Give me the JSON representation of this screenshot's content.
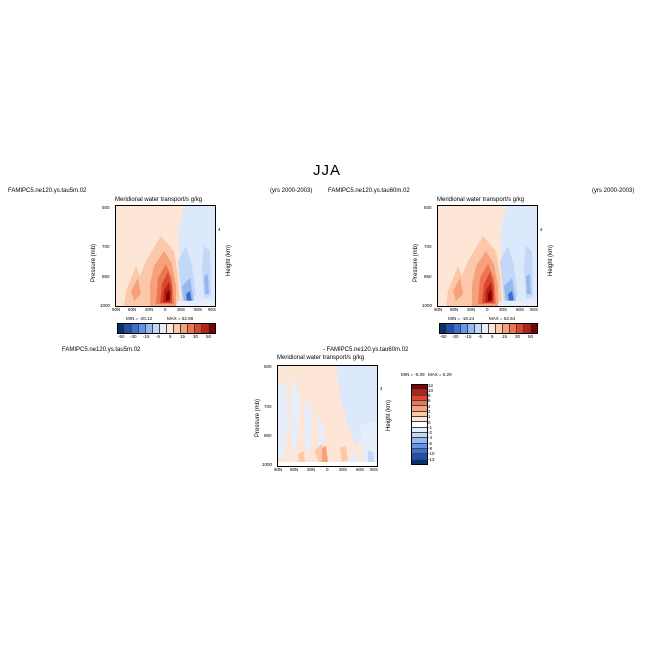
{
  "figure": {
    "main_title": "JJA"
  },
  "panel_left": {
    "case_label": "FAMIPC5.ne120.ys.tau5m.02",
    "variable_label": "Meridional water transport/s g/kg",
    "years_label": "(yrs 2000-2003)",
    "y_axis_label": "Pressure (mb)",
    "y2_axis_label": "Height (km)",
    "y_ticks": [
      "500",
      "700",
      "850",
      "1000"
    ],
    "y2_ticks": [
      "4"
    ],
    "x_ticks": [
      "90N",
      "60N",
      "30N",
      "0",
      "30S",
      "60S",
      "90S"
    ],
    "colorbar_labels": [
      "-50",
      "-30",
      "-15",
      "-5",
      "5",
      "15",
      "30",
      "50"
    ],
    "min_label": "MIN = -20.12",
    "max_label": "MAX = 52.98"
  },
  "panel_right": {
    "case_label": "FAMIPC5.ne120.ys.tau60m.02",
    "variable_label": "Meridional water transport/s g/kg",
    "years_label": "(yrs 2000-2003)",
    "y_axis_label": "Pressure (mb)",
    "y2_axis_label": "Height (km)",
    "y_ticks": [
      "500",
      "700",
      "850",
      "1000"
    ],
    "y2_ticks": [
      "4"
    ],
    "x_ticks": [
      "90N",
      "60N",
      "30N",
      "0",
      "30S",
      "60S",
      "90S"
    ],
    "colorbar_labels": [
      "-50",
      "-30",
      "-15",
      "-5",
      "5",
      "15",
      "30",
      "50"
    ],
    "min_label": "MIN = -19.24",
    "max_label": "MAX = 52.64"
  },
  "panel_diff": {
    "case_label": "FAMIPC5.ne120.ys.tau5m.02",
    "diff_label": "- FAMIPC5.ne120.ys.tau60m.02",
    "variable_label": "Meridional water transport/s g/kg",
    "y_axis_label": "Pressure (mb)",
    "y2_axis_label": "Height (km)",
    "y_ticks": [
      "500",
      "700",
      "850",
      "1000"
    ],
    "y2_ticks": [
      "4"
    ],
    "x_ticks": [
      "90N",
      "60N",
      "30N",
      "0",
      "30S",
      "60S",
      "90S"
    ],
    "colorbar_labels": [
      "12",
      "10",
      "8",
      "6",
      "4",
      "2",
      "1",
      "0",
      "-1",
      "-2",
      "-4",
      "-6",
      "-8",
      "-10",
      "-12"
    ],
    "min_label": "MIN = -5.09",
    "max_label": "MAX = 6.29"
  },
  "colors": {
    "main_scale": [
      "#08306b",
      "#1f4fb0",
      "#3a70d4",
      "#6495e8",
      "#94b8f0",
      "#c3d7f7",
      "#e6eefc",
      "#fde6d5",
      "#fbc9a9",
      "#f6a17c",
      "#ee7552",
      "#d9482e",
      "#b52216",
      "#7f0000"
    ],
    "diff_scale": [
      "#7f0000",
      "#b52216",
      "#d9482e",
      "#ee7552",
      "#f6a17c",
      "#fbc9a9",
      "#fde6d5",
      "#ffffff",
      "#e6eefc",
      "#c3d7f7",
      "#94b8f0",
      "#6495e8",
      "#3a70d4",
      "#1f4fb0",
      "#08306b"
    ]
  },
  "chart_data": [
    {
      "type": "heatmap",
      "title": "Meridional water transport/s g/kg",
      "subtitle": "FAMIPC5.ne120.ys.tau5m.02",
      "xlabel": "",
      "ylabel": "Pressure (mb)",
      "y2label": "Height (km)",
      "x": [
        "90N",
        "60N",
        "30N",
        "0",
        "30S",
        "60S",
        "90S"
      ],
      "y": [
        500,
        700,
        850,
        1000
      ],
      "ylim": [
        1000,
        500
      ],
      "levels": [
        -50,
        -30,
        -15,
        -5,
        5,
        15,
        30,
        50
      ],
      "min": -20.12,
      "max": 52.98,
      "legend": "colorbar-bottom"
    },
    {
      "type": "heatmap",
      "title": "Meridional water transport/s g/kg",
      "subtitle": "FAMIPC5.ne120.ys.tau60m.02",
      "xlabel": "",
      "ylabel": "Pressure (mb)",
      "y2label": "Height (km)",
      "x": [
        "90N",
        "60N",
        "30N",
        "0",
        "30S",
        "60S",
        "90S"
      ],
      "y": [
        500,
        700,
        850,
        1000
      ],
      "ylim": [
        1000,
        500
      ],
      "levels": [
        -50,
        -30,
        -15,
        -5,
        5,
        15,
        30,
        50
      ],
      "min": -19.24,
      "max": 52.64,
      "legend": "colorbar-bottom"
    },
    {
      "type": "heatmap",
      "title": "Meridional water transport/s g/kg",
      "subtitle": "FAMIPC5.ne120.ys.tau5m.02 - FAMIPC5.ne120.ys.tau60m.02",
      "xlabel": "",
      "ylabel": "Pressure (mb)",
      "y2label": "Height (km)",
      "x": [
        "90N",
        "60N",
        "30N",
        "0",
        "30S",
        "60S",
        "90S"
      ],
      "y": [
        500,
        700,
        850,
        1000
      ],
      "ylim": [
        1000,
        500
      ],
      "levels": [
        -12,
        -10,
        -8,
        -6,
        -4,
        -2,
        -1,
        0,
        1,
        2,
        4,
        6,
        8,
        10,
        12
      ],
      "min": -5.09,
      "max": 6.29,
      "legend": "colorbar-right"
    }
  ]
}
